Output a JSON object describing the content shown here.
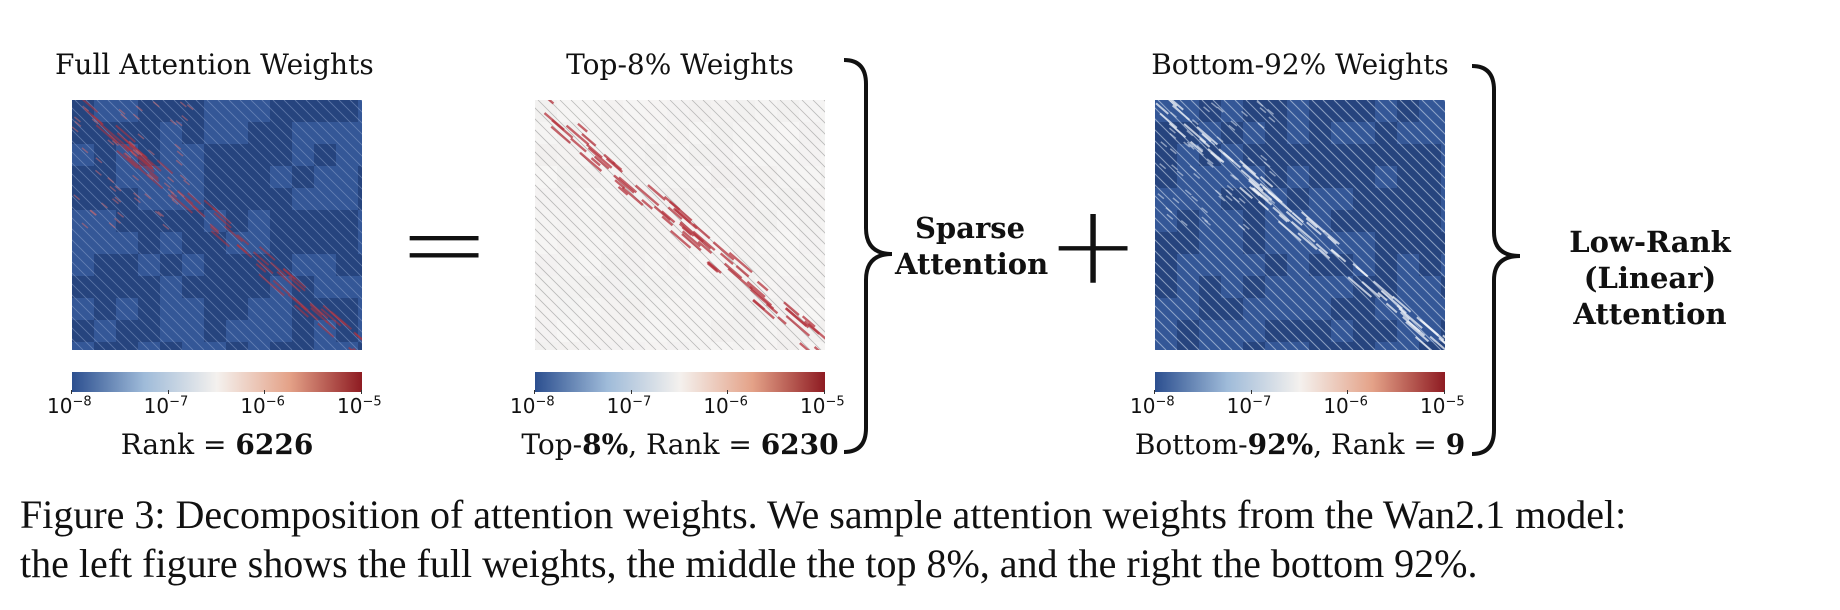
{
  "panels": [
    {
      "title": "Full Attention Weights",
      "rank_prefix": "Rank = ",
      "rank_value": "6226",
      "style": "full"
    },
    {
      "title": "Top-8% Weights",
      "pct_prefix": "Top-",
      "pct_value": "8%",
      "rank_prefix": ",  Rank = ",
      "rank_value": "6230",
      "style": "top"
    },
    {
      "title": "Bottom-92% Weights",
      "pct_prefix": "Bottom-",
      "pct_value": "92%",
      "rank_prefix": ",  Rank = ",
      "rank_value": "9",
      "style": "bottom"
    }
  ],
  "colorbar": {
    "ticks": [
      {
        "base": "10",
        "exp": "−8"
      },
      {
        "base": "10",
        "exp": "−7"
      },
      {
        "base": "10",
        "exp": "−6"
      },
      {
        "base": "10",
        "exp": "−5"
      }
    ],
    "colors": [
      "#2c4f8f",
      "#9fbbd9",
      "#f4f1ee",
      "#e4a288",
      "#8e1b22"
    ]
  },
  "operators": {
    "equals": "=",
    "plus": "+"
  },
  "labels": {
    "sparse_line1": "Sparse",
    "sparse_line2": "Attention",
    "lowrank_line1": "Low-Rank",
    "lowrank_line2": "(Linear) Attention"
  },
  "caption": {
    "line1": "Figure 3: Decomposition of attention weights. We sample attention weights from the Wan2.1 model:",
    "line2": "the left figure shows the full weights, the middle the top 8%, and the right the bottom 92%."
  }
}
